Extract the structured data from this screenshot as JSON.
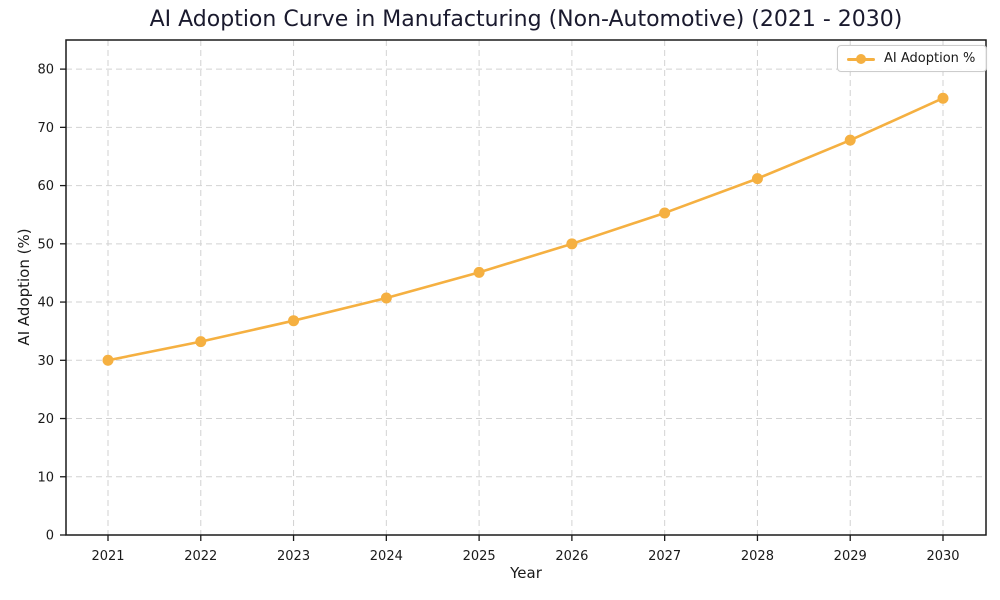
{
  "chart_data": {
    "type": "line",
    "title": "AI Adoption Curve in Manufacturing (Non-Automotive) (2021 - 2030)",
    "xlabel": "Year",
    "ylabel": "AI Adoption (%)",
    "x": [
      2021,
      2022,
      2023,
      2024,
      2025,
      2026,
      2027,
      2028,
      2029,
      2030
    ],
    "series": [
      {
        "name": "AI Adoption %",
        "values": [
          30.0,
          33.2,
          36.8,
          40.7,
          45.1,
          50.0,
          55.3,
          61.2,
          67.8,
          75.0
        ]
      }
    ],
    "ylim": [
      0,
      85
    ],
    "yticks": [
      0,
      10,
      20,
      30,
      40,
      50,
      60,
      70,
      80
    ],
    "grid": true,
    "grid_style": "dashed",
    "legend_position": "upper right",
    "colors": {
      "line": "#F5B041",
      "marker": "#F5B041",
      "grid": "#d2d2d2",
      "spine": "#1a1a1a",
      "tick_text": "#1a1a1a",
      "title_text": "#1a1a2e"
    },
    "marker": "circle"
  }
}
